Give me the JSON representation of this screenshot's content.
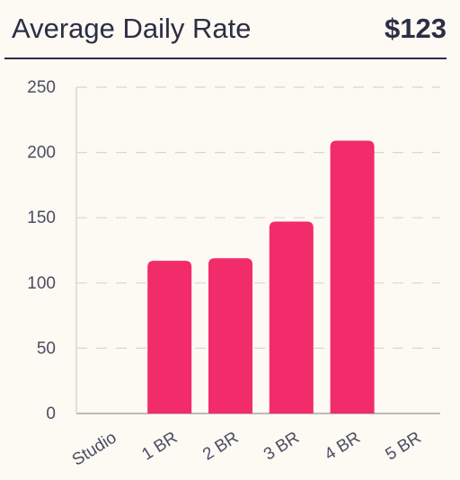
{
  "header": {
    "title": "Average Daily Rate",
    "value": "$123"
  },
  "colors": {
    "bar": "#f22b6b",
    "grid": "#d8d6d2",
    "axis": "#a8a6a3",
    "text": "#2b2e45"
  },
  "chart_data": {
    "type": "bar",
    "title": "",
    "xlabel": "",
    "ylabel": "",
    "categories": [
      "Studio",
      "1 BR",
      "2 BR",
      "3 BR",
      "4 BR",
      "5 BR"
    ],
    "values": [
      0,
      117,
      119,
      147,
      209,
      0
    ],
    "ylim": [
      0,
      250
    ],
    "yticks": [
      0,
      50,
      100,
      150,
      200,
      250
    ],
    "grid": true,
    "legend": "none"
  }
}
